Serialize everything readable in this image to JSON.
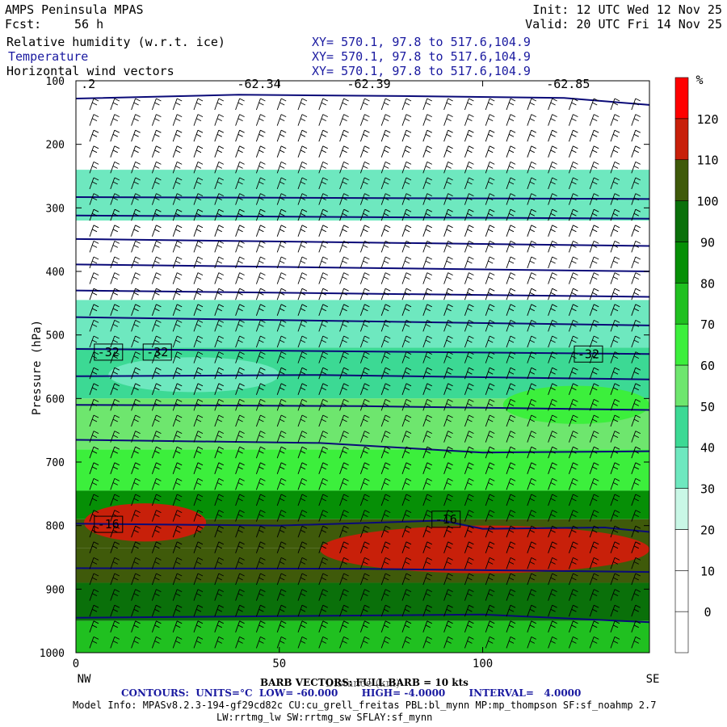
{
  "header": {
    "model": "AMPS Peninsula MPAS",
    "init": "Init: 12 UTC Wed 12 Nov 25",
    "fcst_label": "Fcst:",
    "fcst_value": "56 h",
    "valid": "Valid: 20 UTC Fri 14 Nov 25",
    "fields": [
      {
        "name": "Relative humidity (w.r.t. ice)",
        "xy": "XY= 570.1, 97.8 to 517.6,104.9"
      },
      {
        "name": "Temperature",
        "xy": "XY= 570.1, 97.8 to 517.6,104.9"
      },
      {
        "name": "Horizontal wind vectors",
        "xy": "XY= 570.1, 97.8 to 517.6,104.9"
      }
    ]
  },
  "footer": {
    "barb": "BARB VECTORS: FULL BARB = 10 kts",
    "contours": "CONTOURS:  UNITS=°C  LOW= -60.000       HIGH= -4.0000       INTERVAL=   4.0000",
    "model_info": "Model Info: MPASv8.2.3-194-gf29cd82c CU:cu_grell_freitas PBL:bl_mynn MP:mp_thompson SF:sf_noahmp 2.7",
    "model_info2": "LW:rrtmg_lw SW:rrtmg_sw SFLAY:sf_mynn"
  },
  "colors": {
    "blue_text": "#1a1aa0",
    "contour": "#0a0a78"
  },
  "chart_data": {
    "type": "heatmap",
    "title": "Relative humidity (w.r.t. ice), Temperature, Horizontal wind vectors",
    "xlabel": "Distance (km)",
    "ylabel": "Pressure (hPa)",
    "x_ticks": [
      0,
      50,
      100
    ],
    "y_ticks": [
      100,
      200,
      300,
      400,
      500,
      600,
      700,
      800,
      900,
      1000
    ],
    "xlim": [
      0,
      141
    ],
    "ylim": [
      1000,
      100
    ],
    "x_end_labels": {
      "left": "NW",
      "right": "SE"
    },
    "colorbar": {
      "unit": "%",
      "levels": [
        0,
        10,
        20,
        30,
        40,
        50,
        60,
        70,
        80,
        90,
        100,
        110,
        120
      ],
      "colors": [
        "#ffffff",
        "#ffffff",
        "#ffffff",
        "#c9f7e6",
        "#6ee8bf",
        "#3cd994",
        "#6ee66e",
        "#3cef3c",
        "#20c020",
        "#068f06",
        "#0a700a",
        "#3f5a0a",
        "#c8200a",
        "#ff0000"
      ]
    },
    "rh_bands": [
      {
        "p_top": 100,
        "p_bot": 240,
        "rh": 10
      },
      {
        "p_top": 240,
        "p_bot": 320,
        "rh": 35
      },
      {
        "p_top": 320,
        "p_bot": 445,
        "rh": 10
      },
      {
        "p_top": 445,
        "p_bot": 520,
        "rh": 35
      },
      {
        "p_top": 520,
        "p_bot": 600,
        "rh": 45
      },
      {
        "p_top": 600,
        "p_bot": 680,
        "rh": 55
      },
      {
        "p_top": 680,
        "p_bot": 745,
        "rh": 65
      },
      {
        "p_top": 745,
        "p_bot": 790,
        "rh": 80
      },
      {
        "p_top": 790,
        "p_bot": 835,
        "rh": 100
      },
      {
        "p_top": 835,
        "p_bot": 890,
        "rh": 105
      },
      {
        "p_top": 890,
        "p_bot": 950,
        "rh": 95
      },
      {
        "p_top": 950,
        "p_bot": 1000,
        "rh": 75
      }
    ],
    "rh_patches": [
      {
        "x0": 2,
        "x1": 32,
        "p_top": 765,
        "p_bot": 825,
        "rh": 115
      },
      {
        "x0": 60,
        "x1": 141,
        "p_top": 800,
        "p_bot": 875,
        "rh": 115
      },
      {
        "x0": 8,
        "x1": 50,
        "p_top": 535,
        "p_bot": 590,
        "rh": 35
      },
      {
        "x0": 105,
        "x1": 141,
        "p_top": 580,
        "p_bot": 640,
        "rh": 65
      }
    ],
    "temperature_contours": [
      {
        "label": "-62.34",
        "x": [
          0,
          40,
          80,
          120,
          141
        ],
        "p": [
          128,
          122,
          124,
          127,
          138
        ]
      },
      {
        "label": "",
        "x": [
          0,
          141
        ],
        "p": [
          283,
          286
        ]
      },
      {
        "label": "",
        "x": [
          0,
          141
        ],
        "p": [
          312,
          317
        ]
      },
      {
        "label": "",
        "x": [
          0,
          141
        ],
        "p": [
          349,
          360
        ]
      },
      {
        "label": "",
        "x": [
          0,
          141
        ],
        "p": [
          389,
          400
        ]
      },
      {
        "label": "",
        "x": [
          0,
          141
        ],
        "p": [
          430,
          440
        ]
      },
      {
        "label": "",
        "x": [
          0,
          141
        ],
        "p": [
          472,
          485
        ]
      },
      {
        "label": "-32",
        "x": [
          0,
          141
        ],
        "p": [
          522,
          530
        ]
      },
      {
        "label": "",
        "x": [
          0,
          60,
          141
        ],
        "p": [
          565,
          563,
          570
        ]
      },
      {
        "label": "",
        "x": [
          0,
          70,
          141
        ],
        "p": [
          610,
          612,
          618
        ]
      },
      {
        "label": "",
        "x": [
          0,
          60,
          100,
          141
        ],
        "p": [
          665,
          670,
          685,
          683
        ]
      },
      {
        "label": "-16",
        "x": [
          0,
          50,
          90,
          100,
          130,
          141
        ],
        "p": [
          797,
          800,
          792,
          805,
          803,
          810
        ]
      },
      {
        "label": "",
        "x": [
          0,
          70,
          141
        ],
        "p": [
          867,
          868,
          873
        ]
      },
      {
        "label": "",
        "x": [
          0,
          100,
          141
        ],
        "p": [
          945,
          940,
          952
        ]
      }
    ],
    "contour_labels": [
      {
        "text": "-62.34",
        "x": 45,
        "p": 105
      },
      {
        "text": "-62.39",
        "x": 72,
        "p": 105
      },
      {
        "text": "-62.85",
        "x": 121,
        "p": 105
      },
      {
        "text": ".2",
        "x": 3,
        "p": 105
      },
      {
        "text": "-32",
        "x": 8,
        "p": 527
      },
      {
        "text": "-32",
        "x": 20,
        "p": 527
      },
      {
        "text": "-32",
        "x": 126,
        "p": 530
      },
      {
        "text": "-16",
        "x": 8,
        "p": 798
      },
      {
        "text": "-16",
        "x": 91,
        "p": 790
      }
    ]
  }
}
